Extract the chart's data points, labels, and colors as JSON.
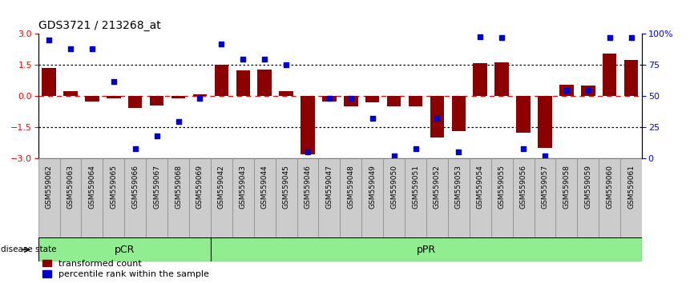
{
  "title": "GDS3721 / 213268_at",
  "samples": [
    "GSM559062",
    "GSM559063",
    "GSM559064",
    "GSM559065",
    "GSM559066",
    "GSM559067",
    "GSM559068",
    "GSM559069",
    "GSM559042",
    "GSM559043",
    "GSM559044",
    "GSM559045",
    "GSM559046",
    "GSM559047",
    "GSM559048",
    "GSM559049",
    "GSM559050",
    "GSM559051",
    "GSM559052",
    "GSM559053",
    "GSM559054",
    "GSM559055",
    "GSM559056",
    "GSM559057",
    "GSM559058",
    "GSM559059",
    "GSM559060",
    "GSM559061"
  ],
  "transformed_count": [
    1.35,
    0.25,
    -0.25,
    -0.12,
    -0.55,
    -0.45,
    -0.1,
    0.08,
    1.5,
    1.25,
    1.3,
    0.25,
    -2.8,
    -0.25,
    -0.5,
    -0.3,
    -0.5,
    -0.5,
    -2.0,
    -1.7,
    1.6,
    1.65,
    -1.75,
    -2.5,
    0.55,
    0.5,
    2.05,
    1.75
  ],
  "percentile_rank": [
    95,
    88,
    88,
    62,
    8,
    18,
    30,
    48,
    92,
    80,
    80,
    75,
    5,
    48,
    48,
    32,
    2,
    8,
    32,
    5,
    98,
    97,
    8,
    2,
    55,
    55,
    97,
    97
  ],
  "pcr_count": 8,
  "ppr_count": 20,
  "bar_color": "#8B0000",
  "dot_color": "#0000CD",
  "pcr_color": "#90EE90",
  "ppr_color": "#90EE90",
  "ylim": [
    -3,
    3
  ],
  "yticks_left": [
    -3,
    -1.5,
    0,
    1.5,
    3
  ],
  "yticks_right": [
    0,
    25,
    50,
    75,
    100
  ],
  "yticklabels_right": [
    "0",
    "25",
    "50",
    "75",
    "100%"
  ],
  "background_color": "#ffffff",
  "title_fontsize": 10,
  "axis_label_fontsize": 8,
  "tick_fontsize": 6.5,
  "legend_fontsize": 8
}
